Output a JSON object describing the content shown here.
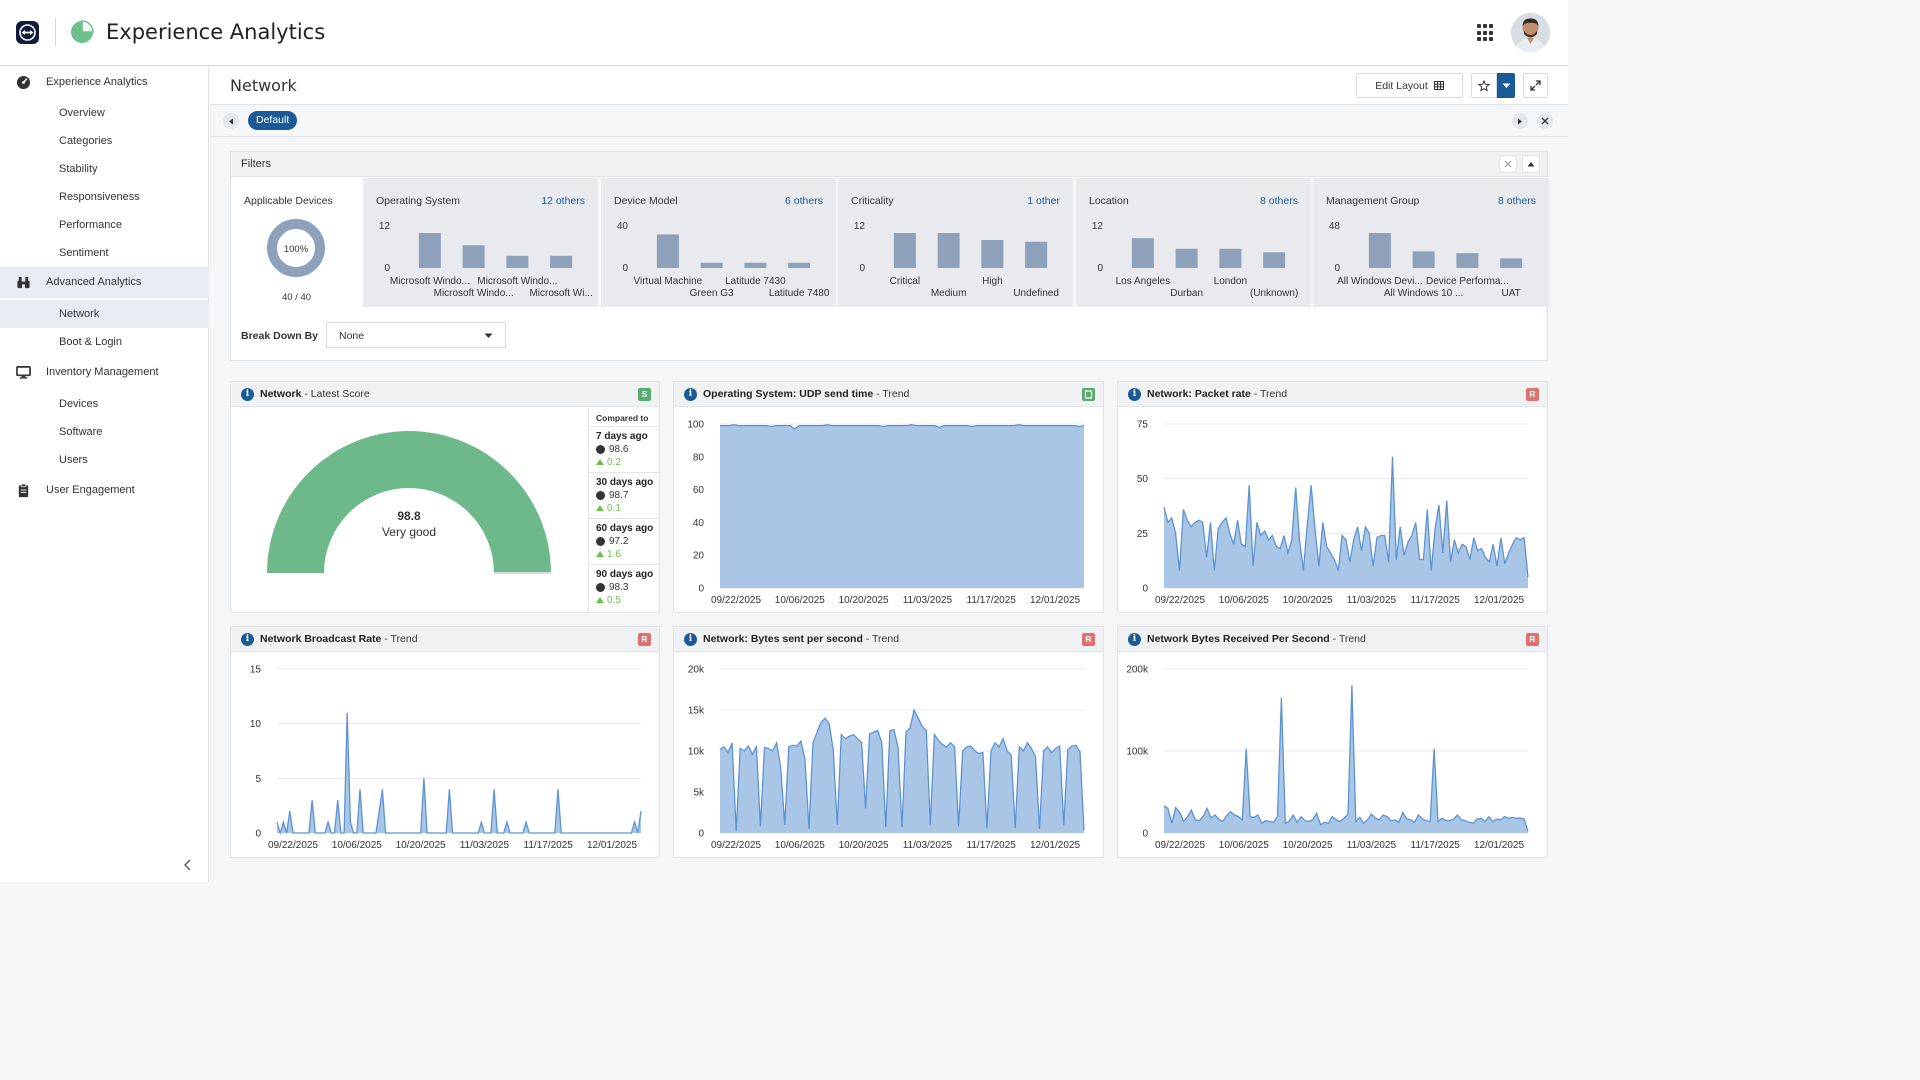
{
  "app": {
    "title": "Experience Analytics"
  },
  "sidebar": {
    "groups": [
      {
        "label": "Experience Analytics",
        "icon": "gauge-icon",
        "items": [
          "Overview",
          "Categories",
          "Stability",
          "Responsiveness",
          "Performance",
          "Sentiment"
        ]
      },
      {
        "label": "Advanced Analytics",
        "icon": "binoculars-icon",
        "items": [
          "Network",
          "Boot & Login"
        ],
        "active_item": "Network"
      },
      {
        "label": "Inventory Management",
        "icon": "monitor-icon",
        "items": [
          "Devices",
          "Software",
          "Users"
        ]
      },
      {
        "label": "User Engagement",
        "icon": "clipboard-icon",
        "items": []
      }
    ]
  },
  "page": {
    "title": "Network",
    "edit_layout": "Edit Layout",
    "tab": "Default"
  },
  "filters": {
    "title": "Filters",
    "applicable": {
      "title": "Applicable Devices",
      "percent": "100%",
      "count": "40 / 40",
      "fraction": 1.0
    },
    "cards": [
      {
        "title": "Operating System",
        "others": "12 others",
        "ymax": "12",
        "ymin": "0",
        "values": [
          10,
          6.5,
          3.5,
          3.5
        ],
        "labels_top": [
          "Microsoft Windo...",
          "Microsoft Windo..."
        ],
        "labels_bottom": [
          "Microsoft Windo...",
          "Microsoft Wi..."
        ]
      },
      {
        "title": "Device Model",
        "others": "6 others",
        "ymax": "40",
        "ymin": "0",
        "values": [
          32,
          5,
          5,
          5
        ],
        "labels_top": [
          "Virtual Machine",
          "Latitude 7430"
        ],
        "labels_bottom": [
          "Green G3",
          "Latitude 7480"
        ]
      },
      {
        "title": "Criticality",
        "others": "1 other",
        "ymax": "12",
        "ymin": "0",
        "values": [
          10,
          10,
          8,
          7.5
        ],
        "labels_top": [
          "Critical",
          "High"
        ],
        "labels_bottom": [
          "Medium",
          "Undefined"
        ]
      },
      {
        "title": "Location",
        "others": "8 others",
        "ymax": "12",
        "ymin": "0",
        "values": [
          8.5,
          5.5,
          5.5,
          4.5
        ],
        "labels_top": [
          "Los Angeles",
          "London"
        ],
        "labels_bottom": [
          "Durban",
          "(Unknown)"
        ]
      },
      {
        "title": "Management Group",
        "others": "8 others",
        "ymax": "48",
        "ymin": "0",
        "values": [
          40,
          19,
          17,
          11
        ],
        "labels_top": [
          "All Windows Devi...",
          "Device Performa..."
        ],
        "labels_bottom": [
          "All Windows 10 ...",
          "UAT"
        ]
      }
    ],
    "breakdown_label": "Break Down By",
    "breakdown_value": "None"
  },
  "widgets": {
    "latest_score": {
      "title": "Network",
      "subtitle": " - Latest Score",
      "badge": "S",
      "badge_color": "#5aaa6e",
      "score": "98.8",
      "rating": "Very good",
      "score_value": 98.8,
      "compared_to": "Compared to",
      "comparisons": [
        {
          "label": "7 days ago",
          "value": "98.6",
          "delta": "0.2"
        },
        {
          "label": "30 days ago",
          "value": "98.7",
          "delta": "0.1"
        },
        {
          "label": "60 days ago",
          "value": "97.2",
          "delta": "1.6"
        },
        {
          "label": "90 days ago",
          "value": "98.3",
          "delta": "0.5"
        }
      ]
    },
    "udp": {
      "title": "Operating System: UDP send time",
      "subtitle": " - Trend",
      "badge": "",
      "badge_color": "#5aaa6e"
    },
    "packet": {
      "title": "Network: Packet rate",
      "subtitle": " - Trend",
      "badge": "R",
      "badge_color": "#e07070"
    },
    "broadcast": {
      "title": "Network Broadcast Rate",
      "subtitle": " - Trend",
      "badge": "R",
      "badge_color": "#e07070"
    },
    "bytes_sent": {
      "title": "Network: Bytes sent per second",
      "subtitle": " - Trend",
      "badge": "R",
      "badge_color": "#e07070"
    },
    "bytes_recv": {
      "title": "Network Bytes Received Per Second",
      "subtitle": " - Trend",
      "badge": "R",
      "badge_color": "#e07070"
    }
  },
  "chart_data": [
    {
      "type": "area",
      "name": "udp",
      "x_labels": [
        "09/22/2025",
        "10/06/2025",
        "10/20/2025",
        "11/03/2025",
        "11/17/2025",
        "12/01/2025"
      ],
      "y_ticks": [
        "0",
        "20",
        "40",
        "60",
        "80",
        "100"
      ],
      "ylim": [
        0,
        100
      ],
      "values": [
        99,
        99,
        99,
        99.5,
        99,
        99,
        99,
        99,
        99,
        99,
        99,
        98.5,
        99,
        99,
        99,
        99,
        97,
        99,
        99,
        99,
        99,
        99,
        99,
        99.5,
        99,
        99,
        99,
        99,
        99,
        99,
        99,
        99,
        99,
        99,
        99,
        98.5,
        99,
        99,
        99,
        99,
        99,
        99.5,
        99,
        99,
        99,
        99,
        99,
        98,
        99,
        99,
        99,
        99,
        99,
        99,
        98.5,
        99,
        99,
        99,
        99,
        99,
        99,
        99,
        99,
        99,
        99.5,
        99,
        99,
        99,
        99,
        99,
        99,
        99,
        99,
        99,
        99,
        99,
        99,
        98.5,
        99
      ]
    },
    {
      "type": "area",
      "name": "packet",
      "x_labels": [
        "09/22/2025",
        "10/06/2025",
        "10/20/2025",
        "11/03/2025",
        "11/17/2025",
        "12/01/2025"
      ],
      "y_ticks": [
        "0",
        "25",
        "50",
        "75"
      ],
      "ylim": [
        0,
        75
      ],
      "values": [
        37,
        30,
        32,
        25,
        8,
        36,
        31,
        28,
        30,
        31,
        30,
        14,
        30,
        8,
        27,
        30,
        32,
        25,
        20,
        31,
        20,
        19,
        47,
        10,
        30,
        24,
        26,
        22,
        24,
        19,
        18,
        24,
        16,
        22,
        46,
        22,
        8,
        29,
        47,
        27,
        10,
        30,
        19,
        16,
        13,
        8,
        24,
        22,
        12,
        22,
        28,
        17,
        28,
        25,
        10,
        23,
        24,
        24,
        12,
        60,
        13,
        28,
        15,
        21,
        24,
        30,
        13,
        13,
        36,
        8,
        27,
        38,
        16,
        40,
        12,
        22,
        16,
        20,
        19,
        13,
        23,
        17,
        18,
        14,
        12,
        20,
        10,
        23,
        11,
        16,
        20,
        23,
        22,
        23,
        5
      ]
    },
    {
      "type": "area",
      "name": "broadcast",
      "x_labels": [
        "09/22/2025",
        "10/06/2025",
        "10/20/2025",
        "11/03/2025",
        "11/17/2025",
        "12/01/2025"
      ],
      "y_ticks": [
        "0",
        "5",
        "10",
        "15"
      ],
      "ylim": [
        0,
        15
      ],
      "values": [
        1,
        0,
        1,
        0,
        2,
        0,
        0,
        0,
        0,
        0,
        0,
        3,
        0,
        0,
        0,
        0,
        1,
        0,
        0,
        3,
        0,
        0,
        11,
        1,
        0,
        0,
        4,
        0,
        0,
        0,
        0,
        0,
        2,
        4,
        0,
        0,
        0,
        0,
        0,
        0,
        0,
        0,
        0,
        0,
        0,
        0,
        5,
        0,
        0,
        0,
        0,
        0,
        0,
        0,
        4,
        0,
        0,
        0,
        0,
        0,
        0,
        0,
        0,
        0,
        1,
        0,
        0,
        0,
        4,
        0,
        0,
        0,
        1,
        0,
        0,
        0,
        0,
        0,
        1,
        0,
        0,
        0,
        0,
        0,
        0,
        0,
        0,
        0,
        4,
        0,
        0,
        0,
        0,
        0,
        0,
        0,
        0,
        0,
        0,
        0,
        0,
        0,
        0,
        0,
        0,
        0,
        0,
        0,
        0,
        0,
        0,
        0,
        1,
        0,
        2
      ]
    },
    {
      "type": "area",
      "name": "bytes_sent",
      "x_labels": [
        "09/22/2025",
        "10/06/2025",
        "10/20/2025",
        "11/03/2025",
        "11/17/2025",
        "12/01/2025"
      ],
      "y_ticks": [
        "0",
        "5k",
        "10k",
        "15k",
        "20k"
      ],
      "ylim": [
        0,
        20000
      ],
      "values": [
        10200,
        10500,
        9800,
        11000,
        200,
        10300,
        10000,
        10600,
        9600,
        10500,
        800,
        10400,
        10300,
        10000,
        11000,
        8000,
        1000,
        10500,
        10700,
        10600,
        11200,
        9000,
        500,
        11000,
        12300,
        13500,
        14000,
        13300,
        10200,
        1000,
        12000,
        11500,
        11800,
        12000,
        11500,
        11000,
        3000,
        12100,
        12300,
        12500,
        11000,
        700,
        12500,
        12600,
        10500,
        700,
        12300,
        12800,
        15000,
        14000,
        13000,
        12500,
        1000,
        12000,
        11300,
        10800,
        10500,
        11000,
        10500,
        800,
        10000,
        10500,
        10600,
        10000,
        9700,
        9800,
        600,
        10000,
        11000,
        10500,
        11500,
        10000,
        9500,
        600,
        10500,
        10000,
        11000,
        10300,
        9300,
        500,
        10000,
        10500,
        9800,
        10300,
        10600,
        1000,
        10200,
        10600,
        10700,
        9900,
        300
      ]
    },
    {
      "type": "area",
      "name": "bytes_recv",
      "x_labels": [
        "09/22/2025",
        "10/06/2025",
        "10/20/2025",
        "11/03/2025",
        "11/17/2025",
        "12/01/2025"
      ],
      "y_ticks": [
        "0",
        "100k",
        "200k"
      ],
      "ylim": [
        0,
        200000
      ],
      "values": [
        33000,
        30000,
        12000,
        31000,
        25000,
        14000,
        20000,
        28000,
        16000,
        15000,
        20000,
        30000,
        18000,
        22000,
        17000,
        14000,
        21000,
        26000,
        22000,
        20000,
        16000,
        103000,
        20000,
        19000,
        22000,
        12000,
        15000,
        14000,
        13000,
        20000,
        165000,
        12000,
        14000,
        22000,
        13000,
        20000,
        15000,
        14000,
        16000,
        24000,
        10000,
        13000,
        12000,
        20000,
        16000,
        14000,
        18000,
        23000,
        180000,
        14000,
        19000,
        12000,
        16000,
        23000,
        18000,
        16000,
        22000,
        20000,
        15000,
        16000,
        13000,
        25000,
        17000,
        16000,
        13000,
        22000,
        17000,
        15000,
        14000,
        103000,
        14000,
        18000,
        15000,
        15000,
        17000,
        22000,
        16000,
        15000,
        13000,
        12000,
        17000,
        18000,
        14000,
        20000,
        14000,
        17000,
        16000,
        20000,
        18000,
        19000,
        18000,
        18000,
        17000,
        2000
      ]
    }
  ]
}
